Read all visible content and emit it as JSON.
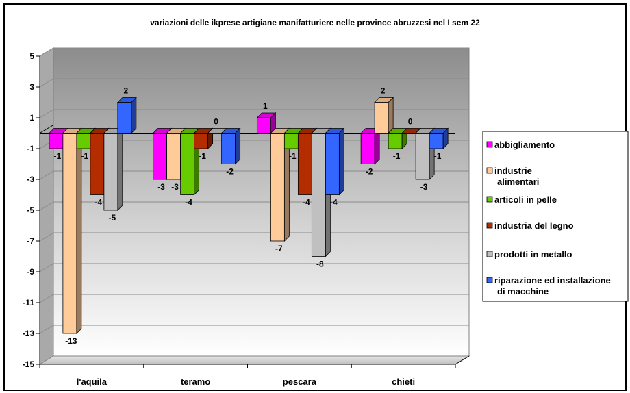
{
  "chart_data": {
    "type": "bar",
    "title": "variazioni delle ikprese artigiane manifatturiere nelle province abruzzesi nel I sem 22",
    "categories": [
      "l'aquila",
      "teramo",
      "pescara",
      "chieti"
    ],
    "series": [
      {
        "name": "abbigliamento",
        "color": "#ff00ff",
        "values": [
          -1,
          -3,
          1,
          -2
        ]
      },
      {
        "name": "industrie alimentari",
        "color": "#ffcc99",
        "values": [
          -13,
          -3,
          -7,
          2
        ]
      },
      {
        "name": "articoli in pelle",
        "color": "#66cc00",
        "values": [
          -1,
          -4,
          -1,
          -1
        ]
      },
      {
        "name": "industria del legno",
        "color": "#b32d00",
        "values": [
          -4,
          -1,
          -4,
          0
        ]
      },
      {
        "name": "prodotti in metallo",
        "color": "#c0c0c0",
        "values": [
          -5,
          0,
          -8,
          -3
        ]
      },
      {
        "name": "riparazione ed installazione di macchine",
        "color": "#3366ff",
        "values": [
          2,
          -2,
          -4,
          -1
        ]
      }
    ],
    "ylim": [
      -15,
      5
    ],
    "yticks": [
      5,
      3,
      1,
      -1,
      -3,
      -5,
      -7,
      -9,
      -11,
      -13,
      -15
    ],
    "grid": true,
    "legend_position": "right"
  }
}
